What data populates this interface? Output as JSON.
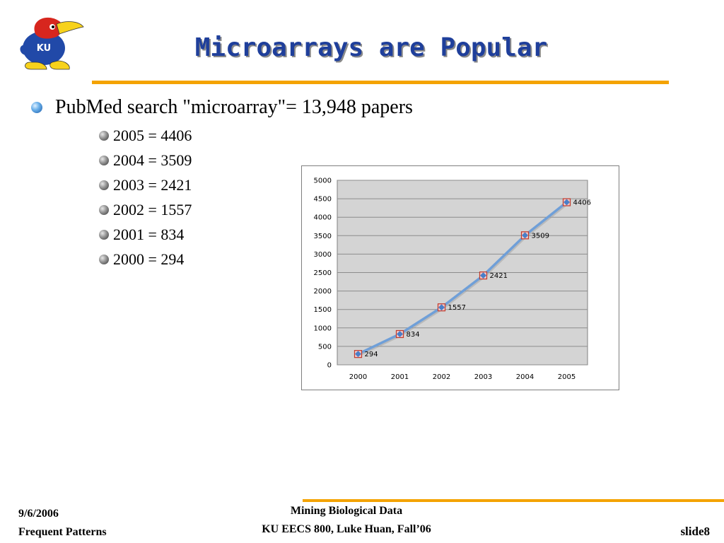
{
  "slide": {
    "title": "Microarrays are Popular",
    "main_bullet": "PubMed search \"microarray\"= 13,948 papers",
    "sub_bullets": [
      "2005 = 4406",
      "2004 = 3509",
      "2003 = 2421",
      "2002 = 1557",
      "2001 = 834",
      "2000 = 294"
    ]
  },
  "logo": {
    "text": "KU"
  },
  "chart_data": {
    "type": "line",
    "categories": [
      "2000",
      "2001",
      "2002",
      "2003",
      "2004",
      "2005"
    ],
    "values": [
      294,
      834,
      1557,
      2421,
      3509,
      4406
    ],
    "data_labels": [
      "294",
      "834",
      "1557",
      "2421",
      "3509",
      "4406"
    ],
    "yticks": [
      "0",
      "500",
      "1000",
      "1500",
      "2000",
      "2500",
      "3000",
      "3500",
      "4000",
      "4500",
      "5000"
    ],
    "ylim": [
      0,
      5000
    ],
    "grid": true,
    "legend": "none",
    "colors": {
      "line": "#6f9fd8",
      "marker_fill": "#4a7ec8",
      "marker_border": "#c0392b",
      "plot_bg": "#d4d4d4"
    }
  },
  "footer": {
    "date": "9/6/2006",
    "topic": "Frequent Patterns",
    "course_title": "Mining Biological Data",
    "course_info": "KU EECS 800, Luke Huan, Fall’06",
    "slide_label": "slide8"
  },
  "colors": {
    "accent": "#f4a300",
    "title": "#1f3f9b"
  }
}
